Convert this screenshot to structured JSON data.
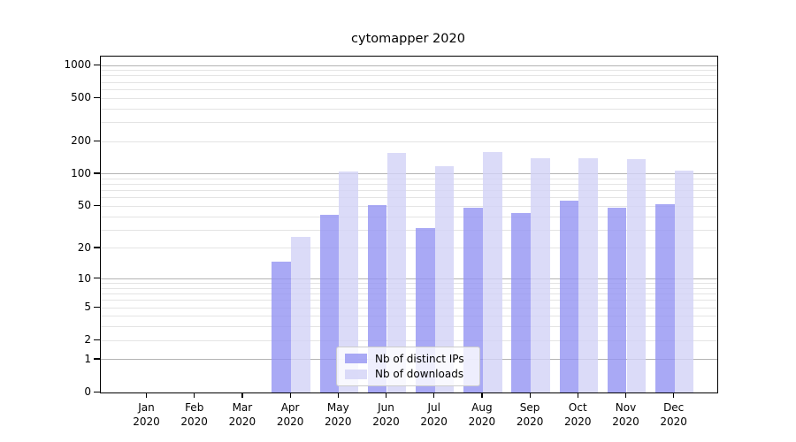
{
  "chart_data": {
    "type": "bar",
    "title": "cytomapper 2020",
    "categories": [
      "Jan 2020",
      "Feb 2020",
      "Mar 2020",
      "Apr 2020",
      "May 2020",
      "Jun 2020",
      "Jul 2020",
      "Aug 2020",
      "Sep 2020",
      "Oct 2020",
      "Nov 2020",
      "Dec 2020"
    ],
    "series": [
      {
        "name": "Nb of distinct IPs",
        "color": "#9393f2",
        "alpha": 0.8,
        "values": [
          0,
          0,
          0,
          15,
          42,
          51,
          31,
          49,
          43,
          57,
          49,
          52
        ]
      },
      {
        "name": "Nb of downloads",
        "color": "#d2d2f6",
        "alpha": 0.8,
        "values": [
          0,
          0,
          0,
          26,
          105,
          158,
          119,
          161,
          141,
          139,
          137,
          108
        ]
      }
    ],
    "yscale": "log1p",
    "ylim": [
      0,
      1206
    ],
    "y_ticks": [
      0,
      1,
      2,
      5,
      10,
      20,
      50,
      100,
      200,
      500,
      1000
    ],
    "y_major_gridlines": [
      1,
      10,
      100,
      1000
    ],
    "y_minor_gridlines": [
      2,
      3,
      4,
      5,
      6,
      7,
      8,
      9,
      20,
      30,
      40,
      50,
      60,
      70,
      80,
      90,
      200,
      300,
      400,
      500,
      600,
      700,
      800,
      900
    ],
    "xlabel": "",
    "ylabel": "",
    "grid": true,
    "legend_position": "inside-bottom-center"
  },
  "colors": {
    "major_grid": "#b4b4b4",
    "minor_grid": "#e4e4e4",
    "spine": "#000000",
    "text": "#000000",
    "legend_border": "#cccccc"
  }
}
